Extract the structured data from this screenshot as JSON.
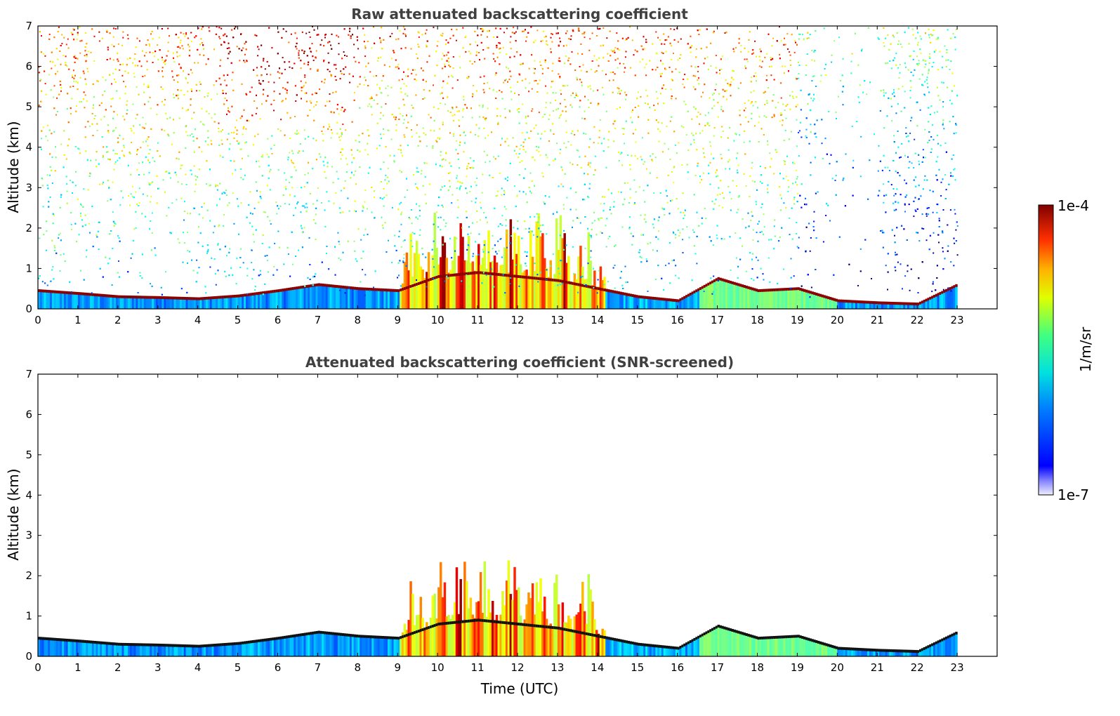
{
  "chart_data": [
    {
      "type": "heatmap",
      "title": "Raw attenuated backscattering coefficient",
      "xlabel": "",
      "ylabel": "Altitude (km)",
      "xlim": [
        0,
        24
      ],
      "ylim": [
        0,
        7
      ],
      "x_ticks": [
        "0",
        "1",
        "2",
        "3",
        "4",
        "5",
        "6",
        "7",
        "8",
        "9",
        "10",
        "11",
        "12",
        "13",
        "14",
        "15",
        "16",
        "17",
        "18",
        "19",
        "20",
        "21",
        "22",
        "23"
      ],
      "y_ticks": [
        "0",
        "1",
        "2",
        "3",
        "4",
        "5",
        "6",
        "7"
      ],
      "data_end_hour": 23,
      "noise_level": "high",
      "layer_top_km": [
        [
          0,
          0.45
        ],
        [
          1,
          0.38
        ],
        [
          2,
          0.3
        ],
        [
          3,
          0.28
        ],
        [
          4,
          0.25
        ],
        [
          5,
          0.32
        ],
        [
          6,
          0.45
        ],
        [
          7,
          0.6
        ],
        [
          8,
          0.5
        ],
        [
          9,
          0.45
        ],
        [
          10,
          0.8
        ],
        [
          11,
          0.9
        ],
        [
          12,
          0.8
        ],
        [
          13,
          0.7
        ],
        [
          14,
          0.5
        ],
        [
          15,
          0.3
        ],
        [
          16,
          0.2
        ],
        [
          17,
          0.75
        ],
        [
          18,
          0.45
        ],
        [
          19,
          0.5
        ],
        [
          20,
          0.2
        ],
        [
          21,
          0.15
        ],
        [
          22,
          0.12
        ],
        [
          23,
          0.6
        ]
      ]
    },
    {
      "type": "heatmap",
      "title": "Attenuated backscattering coefficient (SNR-screened)",
      "xlabel": "Time (UTC)",
      "ylabel": "Altitude (km)",
      "xlim": [
        0,
        24
      ],
      "ylim": [
        0,
        7
      ],
      "x_ticks": [
        "0",
        "1",
        "2",
        "3",
        "4",
        "5",
        "6",
        "7",
        "8",
        "9",
        "10",
        "11",
        "12",
        "13",
        "14",
        "15",
        "16",
        "17",
        "18",
        "19",
        "20",
        "21",
        "22",
        "23"
      ],
      "y_ticks": [
        "0",
        "1",
        "2",
        "3",
        "4",
        "5",
        "6",
        "7"
      ],
      "data_end_hour": 23,
      "noise_level": "screened"
    }
  ],
  "colorbar": {
    "label": "1/m/sr",
    "max_label": "1e-4",
    "min_label": "1e-7",
    "scale": "log",
    "colormap": "jet"
  },
  "colors": {
    "title": "#404040",
    "frame": "#000000"
  }
}
